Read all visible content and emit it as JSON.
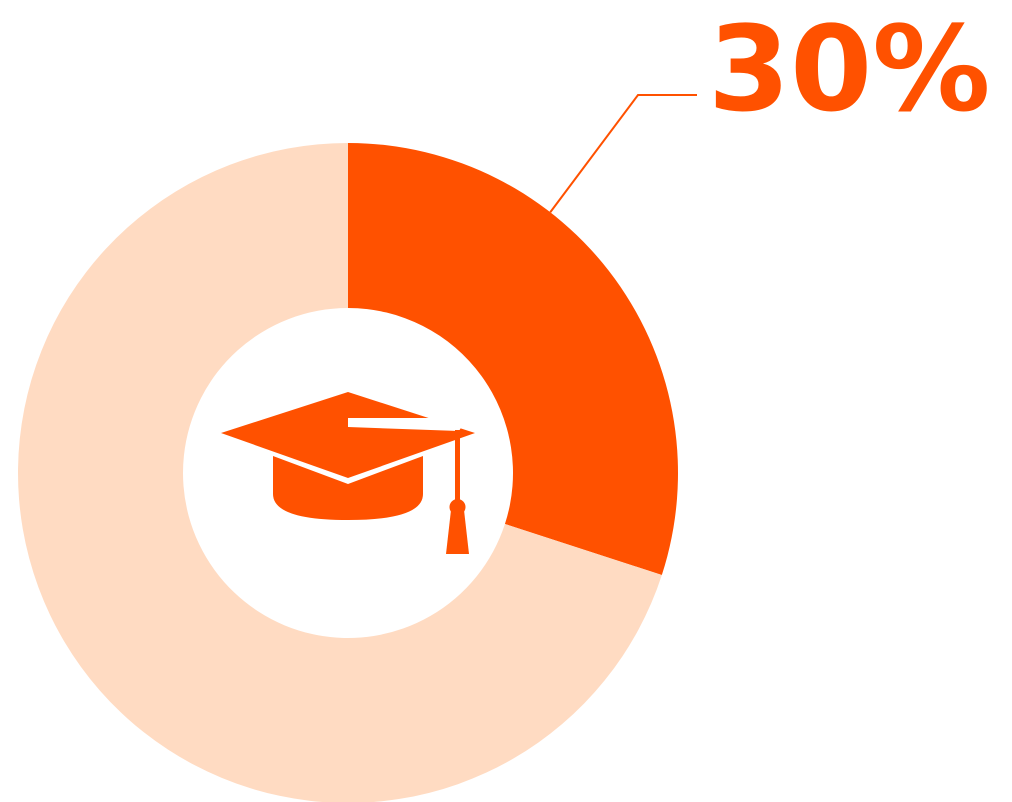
{
  "chart_data": {
    "type": "pie",
    "variant": "donut",
    "slices": [
      {
        "value": 30,
        "color": "#ff5100"
      },
      {
        "value": 70,
        "color": "#ffdbc2"
      }
    ],
    "data_label": "30%",
    "center_icon": "graduation-cap-icon",
    "icon_color": "#ff5100",
    "label_color": "#ff5100"
  }
}
